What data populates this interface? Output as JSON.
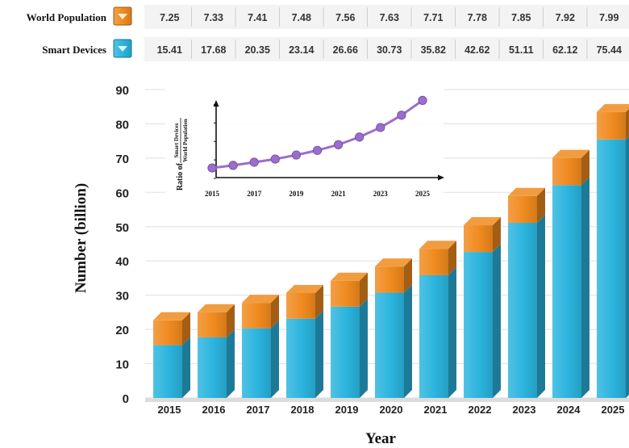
{
  "chart_data": {
    "type": "bar",
    "stacked": true,
    "three_d": true,
    "categories": [
      "2015",
      "2016",
      "2017",
      "2018",
      "2019",
      "2020",
      "2021",
      "2022",
      "2023",
      "2024",
      "2025"
    ],
    "series": [
      {
        "name": "Smart Devices",
        "values": [
          15.41,
          17.68,
          20.35,
          23.14,
          26.66,
          30.73,
          35.82,
          42.62,
          51.11,
          62.12,
          75.44
        ],
        "color": "#2AB4DE"
      },
      {
        "name": "World Population",
        "values": [
          7.25,
          7.33,
          7.41,
          7.48,
          7.56,
          7.63,
          7.71,
          7.78,
          7.85,
          7.92,
          7.99
        ],
        "color": "#F08A1E"
      }
    ],
    "table_rows": [
      {
        "label": "World Population",
        "values": [
          "7.25",
          "7.33",
          "7.41",
          "7.48",
          "7.56",
          "7.63",
          "7.71",
          "7.78",
          "7.85",
          "7.92",
          "7.99"
        ],
        "color": "#F08A1E"
      },
      {
        "label": "Smart Devices",
        "values": [
          "15.41",
          "17.68",
          "20.35",
          "23.14",
          "26.66",
          "30.73",
          "35.82",
          "42.62",
          "51.11",
          "62.12",
          "75.44"
        ],
        "color": "#2AB4DE"
      }
    ],
    "xlabel": "Year",
    "ylabel": "Number (billion)",
    "ylim": [
      0,
      90
    ],
    "yticks": [
      "0",
      "10",
      "20",
      "30",
      "40",
      "50",
      "60",
      "70",
      "80",
      "90"
    ],
    "grid": true,
    "inset": {
      "type": "line",
      "ylabel_prefix": "Ratio of",
      "ylabel_numerator": "Smart Devices",
      "ylabel_denominator": "World Population",
      "x": [
        2015,
        2016,
        2017,
        2018,
        2019,
        2020,
        2021,
        2022,
        2023,
        2024,
        2025
      ],
      "y": [
        2.13,
        2.41,
        2.75,
        3.09,
        3.53,
        4.03,
        4.65,
        5.48,
        6.51,
        7.84,
        9.44
      ],
      "xticks": [
        "2015",
        "2017",
        "2019",
        "2021",
        "2023",
        "2025"
      ],
      "yticks": [
        "1",
        "3",
        "5",
        "7",
        "9"
      ],
      "ylim": [
        1,
        10
      ],
      "color": "#9B6DD0"
    }
  }
}
